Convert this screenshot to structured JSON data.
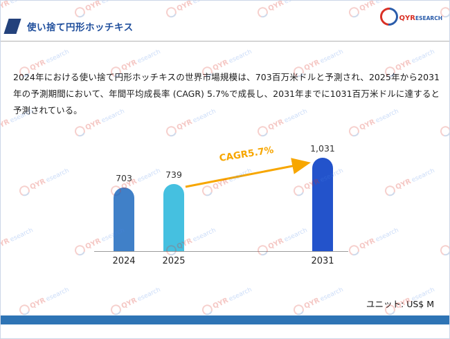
{
  "slide": {
    "title": "使い捨て円形ホッチキス",
    "logo_qyr": "QYR",
    "logo_rest": "ESEARCH",
    "body_text": "2024年における使い捨て円形ホッチキスの世界市場規模は、703百万米ドルと予測され、2025年から2031年の予測期間において、年間平均成長率 (CAGR) 5.7%で成長し、2031年までに1031百万米ドルに達すると予測されている。",
    "unit_label": "ユニット: US$ M",
    "watermark_text": "QYResearch"
  },
  "colors": {
    "title_blue": "#1f4e9c",
    "footer_blue": "#2e74b5",
    "accent_navy": "#24427c",
    "arrow_orange": "#f7a600"
  },
  "chart_data": {
    "type": "bar",
    "categories": [
      "2024",
      "2025",
      "2031"
    ],
    "values": [
      703,
      739,
      1031
    ],
    "value_labels": [
      "703",
      "739",
      "1,031"
    ],
    "bar_colors": [
      "#4080c8",
      "#45c0e0",
      "#2353cb"
    ],
    "annotation": "CAGR5.7%",
    "annotation_color": "#f7a600",
    "title": "",
    "xlabel": "",
    "ylabel": "",
    "ylim": [
      0,
      1100
    ],
    "grid": false,
    "legend": "none",
    "unit": "US$ M"
  }
}
